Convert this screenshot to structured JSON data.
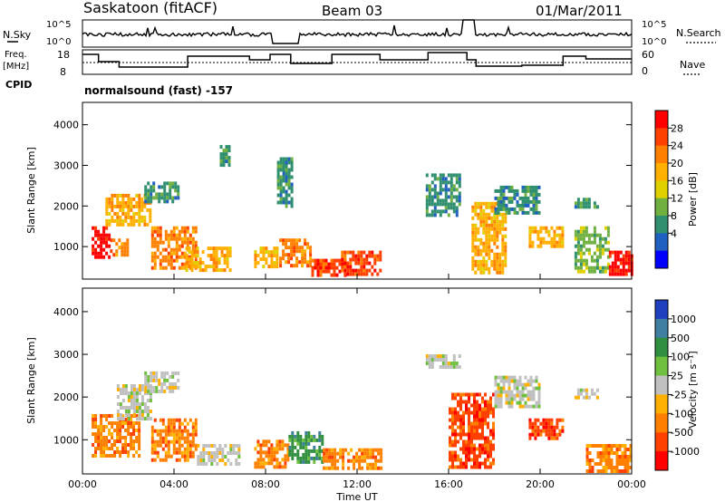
{
  "header": {
    "station": "Saskatoon (fitACF)",
    "beam": "Beam 03",
    "date": "01/Mar/2011"
  },
  "strip_panels": {
    "nsky_label": "N.Sky",
    "nsky_ticks": [
      "10^5",
      "10^0"
    ],
    "nsearch_label": "N.Search",
    "nsearch_ticks": [
      "10^5",
      "10^0"
    ],
    "freq_label_1": "Freq.",
    "freq_label_2": "[MHz]",
    "freq_ticks": [
      "18",
      "8"
    ],
    "nave_label": "Nave",
    "nave_ticks": [
      "60",
      "0"
    ],
    "cpid_label": "CPID",
    "cpid_value": "normalsound (fast) -157"
  },
  "chart_data": [
    {
      "type": "heatmap",
      "name": "power",
      "ylabel": "Slant Range [km]",
      "y_ticks": [
        1000,
        2000,
        3000,
        4000
      ],
      "ylim": [
        200,
        4550
      ],
      "xlim_hours": [
        0,
        24
      ],
      "colorbar_label": "Power [dB]",
      "colorbar_ticks": [
        "28",
        "24",
        "20",
        "16",
        "12",
        "8",
        "4"
      ],
      "colorbar_colors": [
        "#ff0000",
        "#ff4000",
        "#ff8000",
        "#ffb000",
        "#e0d000",
        "#70b040",
        "#2f8f6f",
        "#2060c0",
        "#0000ff"
      ],
      "echo_regions": [
        {
          "t": [
            0.4,
            1.2
          ],
          "r": [
            700,
            1500
          ],
          "db": 28
        },
        {
          "t": [
            1.2,
            2.0
          ],
          "r": [
            800,
            1200
          ],
          "db": 20
        },
        {
          "t": [
            1.0,
            3.0
          ],
          "r": [
            1500,
            2300
          ],
          "db": 16
        },
        {
          "t": [
            2.7,
            4.2
          ],
          "r": [
            2100,
            2600
          ],
          "db": 8
        },
        {
          "t": [
            3.0,
            5.0
          ],
          "r": [
            500,
            1500
          ],
          "db": 20
        },
        {
          "t": [
            4.5,
            6.5
          ],
          "r": [
            400,
            1000
          ],
          "db": 16
        },
        {
          "t": [
            6.0,
            6.4
          ],
          "r": [
            3000,
            3500
          ],
          "db": 8
        },
        {
          "t": [
            7.5,
            8.5
          ],
          "r": [
            500,
            1000
          ],
          "db": 16
        },
        {
          "t": [
            8.6,
            10.0
          ],
          "r": [
            500,
            1200
          ],
          "db": 20
        },
        {
          "t": [
            10.0,
            11.5
          ],
          "r": [
            300,
            700
          ],
          "db": 24
        },
        {
          "t": [
            11.3,
            13.0
          ],
          "r": [
            300,
            900
          ],
          "db": 24
        },
        {
          "t": [
            8.5,
            9.2
          ],
          "r": [
            2000,
            3200
          ],
          "db": 8
        },
        {
          "t": [
            15.0,
            16.5
          ],
          "r": [
            1800,
            2800
          ],
          "db": 8
        },
        {
          "t": [
            17.0,
            18.5
          ],
          "r": [
            400,
            2100
          ],
          "db": 16
        },
        {
          "t": [
            18.0,
            20.0
          ],
          "r": [
            1800,
            2500
          ],
          "db": 8
        },
        {
          "t": [
            19.5,
            21.0
          ],
          "r": [
            1000,
            1500
          ],
          "db": 16
        },
        {
          "t": [
            21.5,
            22.5
          ],
          "r": [
            2000,
            2200
          ],
          "db": 8
        },
        {
          "t": [
            21.5,
            23.0
          ],
          "r": [
            400,
            1500
          ],
          "db": 12
        },
        {
          "t": [
            23.0,
            24.0
          ],
          "r": [
            300,
            900
          ],
          "db": 28
        }
      ]
    },
    {
      "type": "heatmap",
      "name": "velocity",
      "ylabel": "Slant Range [km]",
      "y_ticks": [
        1000,
        2000,
        3000,
        4000
      ],
      "ylim": [
        200,
        4550
      ],
      "xlim_hours": [
        0,
        24
      ],
      "x_ticks": [
        "00:00",
        "04:00",
        "08:00",
        "12:00",
        "16:00",
        "20:00",
        "00:00"
      ],
      "xlabel": "Time UT",
      "colorbar_label": "Velocity [m s⁻¹]",
      "colorbar_ticks": [
        "1000",
        "500",
        "100",
        "25",
        "-25",
        "-100",
        "-500",
        "-1000"
      ],
      "colorbar_colors": [
        "#2040c0",
        "#3f7f9f",
        "#2f8f3f",
        "#70c040",
        "#c0c0c0",
        "#ffb000",
        "#ff8000",
        "#ff4000",
        "#ff0000"
      ],
      "echo_regions": [
        {
          "t": [
            0.4,
            2.5
          ],
          "r": [
            600,
            1600
          ],
          "v": -100
        },
        {
          "t": [
            1.5,
            3.0
          ],
          "r": [
            1500,
            2300
          ],
          "v": 0
        },
        {
          "t": [
            2.7,
            4.2
          ],
          "r": [
            2100,
            2600
          ],
          "v": 0
        },
        {
          "t": [
            3.0,
            5.0
          ],
          "r": [
            500,
            1500
          ],
          "v": -100
        },
        {
          "t": [
            5.0,
            6.8
          ],
          "r": [
            400,
            900
          ],
          "v": 0
        },
        {
          "t": [
            7.5,
            9.0
          ],
          "r": [
            400,
            1000
          ],
          "v": -100
        },
        {
          "t": [
            9.0,
            10.5
          ],
          "r": [
            500,
            1200
          ],
          "v": 100
        },
        {
          "t": [
            10.5,
            13.0
          ],
          "r": [
            300,
            800
          ],
          "v": -100
        },
        {
          "t": [
            15.0,
            16.5
          ],
          "r": [
            2700,
            3000
          ],
          "v": 0
        },
        {
          "t": [
            16.0,
            18.0
          ],
          "r": [
            400,
            2100
          ],
          "v": -500
        },
        {
          "t": [
            18.0,
            20.0
          ],
          "r": [
            1800,
            2500
          ],
          "v": 0
        },
        {
          "t": [
            19.5,
            21.0
          ],
          "r": [
            1000,
            1500
          ],
          "v": -500
        },
        {
          "t": [
            21.5,
            22.5
          ],
          "r": [
            2000,
            2200
          ],
          "v": 0
        },
        {
          "t": [
            22.0,
            24.0
          ],
          "r": [
            300,
            900
          ],
          "v": -100
        }
      ]
    }
  ]
}
